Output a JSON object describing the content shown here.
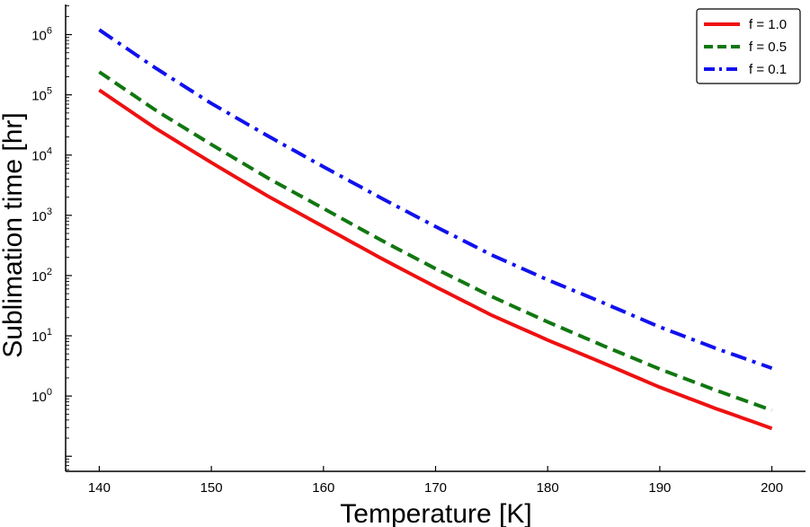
{
  "chart_data": {
    "type": "line",
    "xlabel": "Temperature [K]",
    "ylabel": "Sublimation time [hr]",
    "xlim": [
      137,
      203
    ],
    "ylim_log10": [
      -1.25,
      6.5
    ],
    "y_scale": "log",
    "x_ticks": [
      140,
      150,
      160,
      170,
      180,
      190,
      200
    ],
    "x_tick_labels": [
      "140",
      "150",
      "160",
      "170",
      "180",
      "190",
      "200"
    ],
    "y_tick_exponents": [
      0,
      1,
      2,
      3,
      4,
      5,
      6
    ],
    "y_tick_base": "10",
    "grid": false,
    "legend_position": "top-right",
    "x": [
      140,
      145,
      150,
      155,
      160,
      165,
      170,
      175,
      180,
      185,
      190,
      195,
      200
    ],
    "series": [
      {
        "name": "f = 1.0",
        "color": "#ee1111",
        "style": "solid",
        "values": [
          120000,
          28000,
          7500,
          2100,
          650,
          200,
          65,
          22,
          8.5,
          3.5,
          1.4,
          0.62,
          0.29
        ]
      },
      {
        "name": "f = 0.5",
        "color": "#117711",
        "style": "dashed",
        "values": [
          240000,
          56000,
          15000,
          4200,
          1300,
          400,
          130,
          45,
          17,
          6.8,
          2.8,
          1.25,
          0.58
        ]
      },
      {
        "name": "f = 0.1",
        "color": "#1111ee",
        "style": "dashdot",
        "values": [
          1200000,
          280000,
          72000,
          21000,
          6400,
          2000,
          650,
          220,
          85,
          35,
          14,
          6.2,
          2.9
        ]
      }
    ]
  }
}
